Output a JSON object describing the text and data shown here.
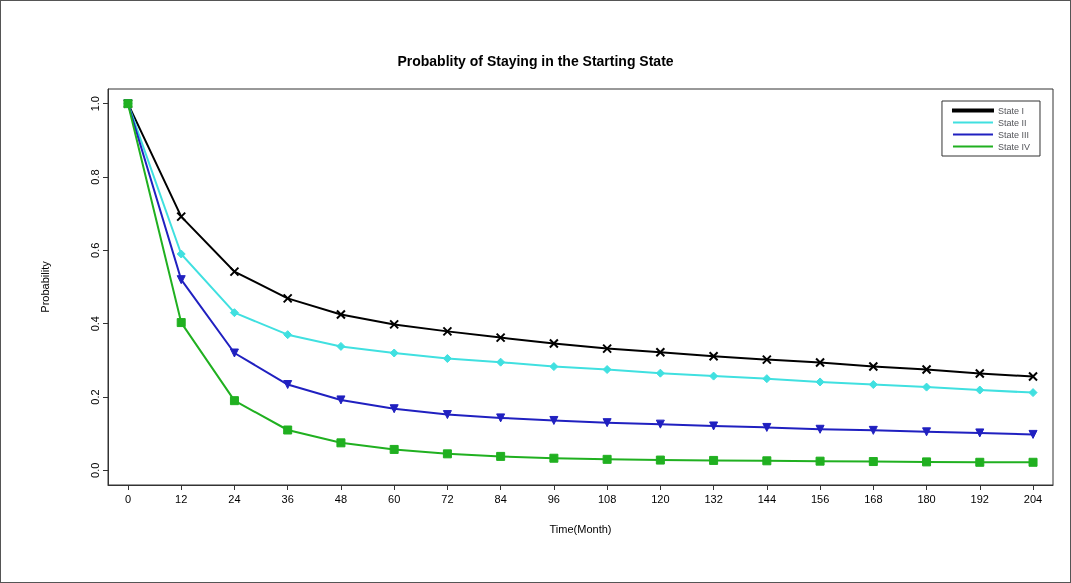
{
  "chart_data": {
    "type": "line",
    "title": "Probablity of Staying in the Starting State",
    "xlabel": "Time(Month)",
    "ylabel": "Probability",
    "x": [
      0,
      12,
      24,
      36,
      48,
      60,
      72,
      84,
      96,
      108,
      120,
      132,
      144,
      156,
      168,
      180,
      192,
      204
    ],
    "series": [
      {
        "name": "State I",
        "color": "#000000",
        "marker": "cross",
        "values": [
          1,
          0.692,
          0.542,
          0.469,
          0.425,
          0.398,
          0.379,
          0.362,
          0.346,
          0.332,
          0.322,
          0.311,
          0.302,
          0.294,
          0.283,
          0.275,
          0.264,
          0.256
        ]
      },
      {
        "name": "State II",
        "color": "#40e0e0",
        "marker": "diamond",
        "values": [
          1,
          0.59,
          0.43,
          0.37,
          0.338,
          0.32,
          0.305,
          0.295,
          0.283,
          0.275,
          0.265,
          0.257,
          0.25,
          0.241,
          0.234,
          0.227,
          0.219,
          0.212
        ]
      },
      {
        "name": "State III",
        "color": "#2020c0",
        "marker": "triangle",
        "values": [
          1,
          0.52,
          0.32,
          0.234,
          0.192,
          0.168,
          0.152,
          0.143,
          0.136,
          0.13,
          0.126,
          0.121,
          0.117,
          0.112,
          0.109,
          0.105,
          0.102,
          0.098
        ]
      },
      {
        "name": "State IV",
        "color": "#20b020",
        "marker": "square",
        "values": [
          1,
          0.403,
          0.19,
          0.11,
          0.075,
          0.057,
          0.045,
          0.038,
          0.033,
          0.03,
          0.028,
          0.027,
          0.026,
          0.025,
          0.024,
          0.023,
          0.022,
          0.022
        ]
      }
    ],
    "xlim": [
      -4.5,
      208.5
    ],
    "xticks": [
      0,
      12,
      24,
      36,
      48,
      60,
      72,
      84,
      96,
      108,
      120,
      132,
      144,
      156,
      168,
      180,
      192,
      204
    ],
    "ylim": [
      -0.04,
      1.04
    ],
    "yticks": [
      {
        "value": 0,
        "label": "0.0"
      },
      {
        "value": 0.2,
        "label": "0.2"
      },
      {
        "value": 0.4,
        "label": "0.4"
      },
      {
        "value": 0.6,
        "label": "0.6"
      },
      {
        "value": 0.8,
        "label": "0.8"
      },
      {
        "value": 1,
        "label": "1.0"
      }
    ],
    "grid": false,
    "legend": "top right",
    "line_style": "solid"
  }
}
